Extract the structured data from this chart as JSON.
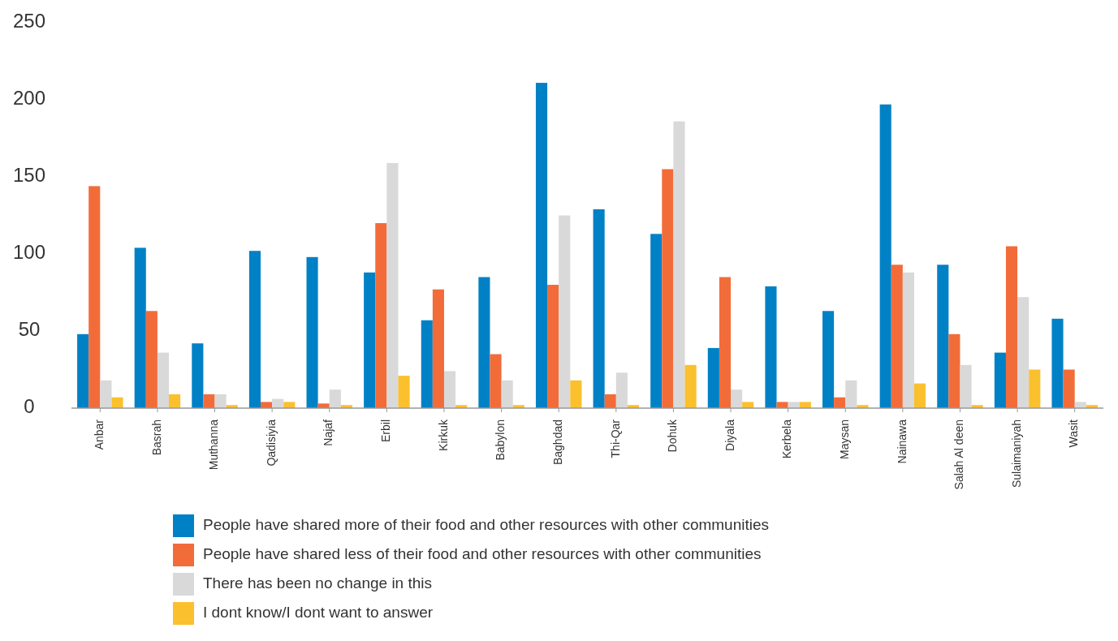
{
  "chart_data": {
    "type": "bar",
    "categories": [
      "Anbar",
      "Basrah",
      "Muthanna",
      "Qadisiyia",
      "Najaf",
      "Erbil",
      "Kirkuk",
      "Babylon",
      "Baghdad",
      "Thi-Qar",
      "Dohuk",
      "Diyala",
      "Kerbela",
      "Maysan",
      "Nainawa",
      "Salah Al deen",
      "Sulaimaniyah",
      "Wasit"
    ],
    "series": [
      {
        "name": "People have shared more of their food and other resources with other communities",
        "color": "#0081c6",
        "values": [
          48,
          104,
          42,
          102,
          98,
          88,
          57,
          85,
          211,
          129,
          113,
          39,
          79,
          63,
          197,
          93,
          36,
          58
        ]
      },
      {
        "name": "People have shared less of their food and other resources with other communities",
        "color": "#f26c3a",
        "values": [
          144,
          63,
          9,
          4,
          3,
          120,
          77,
          35,
          80,
          9,
          155,
          85,
          4,
          7,
          93,
          48,
          105,
          25
        ]
      },
      {
        "name": "There has been no change in this",
        "color": "#d9d9d9",
        "values": [
          18,
          36,
          9,
          6,
          12,
          159,
          24,
          18,
          125,
          23,
          186,
          12,
          4,
          18,
          88,
          28,
          72,
          4
        ]
      },
      {
        "name": "I dont know/I dont want to answer",
        "color": "#fbc02d",
        "values": [
          7,
          9,
          2,
          4,
          2,
          21,
          2,
          2,
          18,
          2,
          28,
          4,
          4,
          2,
          16,
          2,
          25,
          2
        ]
      }
    ],
    "ylim": [
      0,
      250
    ],
    "yticks": [
      0,
      50,
      100,
      150,
      200,
      250
    ],
    "grid": false,
    "legend": "bottom"
  }
}
